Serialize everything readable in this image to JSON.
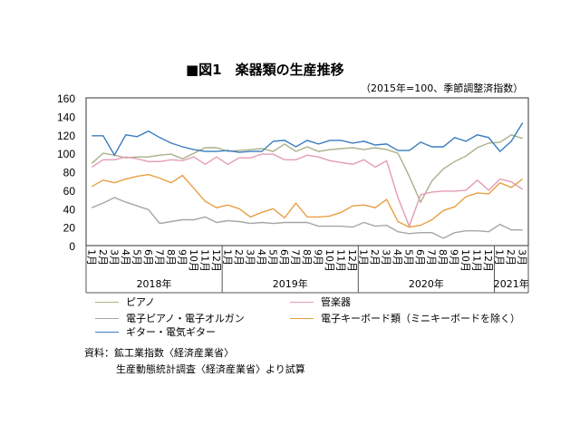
{
  "chart_data": {
    "type": "line",
    "title": "■図1　楽器類の生産推移",
    "subtitle": "（2015年=100、季節調整済指数）",
    "ylim": [
      0,
      160
    ],
    "yticks": [
      0,
      20,
      40,
      60,
      80,
      100,
      120,
      140,
      160
    ],
    "months": [
      "1月",
      "2月",
      "3月",
      "4月",
      "5月",
      "6月",
      "7月",
      "8月",
      "9月",
      "10月",
      "11月",
      "12月",
      "1月",
      "2月",
      "3月",
      "4月",
      "5月",
      "6月",
      "7月",
      "8月",
      "9月",
      "10月",
      "11月",
      "12月",
      "1月",
      "2月",
      "3月",
      "4月",
      "5月",
      "6月",
      "7月",
      "8月",
      "9月",
      "10月",
      "11月",
      "12月",
      "1月",
      "2月",
      "3月"
    ],
    "years": [
      {
        "label": "2018年",
        "count": 12
      },
      {
        "label": "2019年",
        "count": 12
      },
      {
        "label": "2020年",
        "count": 12
      },
      {
        "label": "2021年",
        "count": 3
      }
    ],
    "series": [
      {
        "name": "ピアノ",
        "color": "#a9b18a",
        "values": [
          89,
          100,
          98,
          95,
          96,
          96,
          98,
          99,
          94,
          100,
          106,
          106,
          102,
          103,
          104,
          105,
          102,
          110,
          102,
          107,
          102,
          104,
          105,
          106,
          104,
          106,
          104,
          100,
          75,
          47,
          70,
          83,
          91,
          97,
          106,
          111,
          112,
          120,
          116
        ]
      },
      {
        "name": "管楽器",
        "color": "#e59cb4",
        "values": [
          85,
          93,
          93,
          96,
          94,
          91,
          91,
          93,
          92,
          96,
          88,
          96,
          88,
          95,
          95,
          99,
          99,
          93,
          93,
          98,
          96,
          92,
          90,
          88,
          93,
          85,
          92,
          52,
          21,
          55,
          58,
          59,
          59,
          60,
          71,
          60,
          72,
          69,
          61
        ]
      },
      {
        "name": "電子ピアノ・電子オルガン",
        "color": "#a6a6a6",
        "values": [
          41,
          46,
          52,
          47,
          43,
          39,
          24,
          26,
          28,
          28,
          31,
          25,
          27,
          26,
          24,
          25,
          24,
          25,
          25,
          25,
          21,
          21,
          21,
          20,
          25,
          21,
          22,
          15,
          13,
          14,
          14,
          8,
          14,
          16,
          16,
          15,
          23,
          17,
          17
        ]
      },
      {
        "name": "電子キーボード類（ミニキーボードを除く）",
        "color": "#e8a043",
        "values": [
          64,
          71,
          68,
          72,
          75,
          77,
          73,
          68,
          76,
          62,
          48,
          41,
          44,
          40,
          31,
          36,
          40,
          30,
          46,
          31,
          31,
          32,
          36,
          43,
          44,
          41,
          50,
          26,
          20,
          22,
          28,
          38,
          42,
          53,
          57,
          56,
          68,
          63,
          72
        ]
      },
      {
        "name": "ギター・電気ギター",
        "color": "#3a7dbf",
        "values": [
          119,
          119,
          98,
          120,
          118,
          124,
          117,
          111,
          107,
          104,
          102,
          102,
          103,
          101,
          102,
          102,
          113,
          114,
          107,
          114,
          110,
          114,
          114,
          111,
          113,
          109,
          110,
          103,
          103,
          112,
          107,
          107,
          117,
          113,
          120,
          117,
          102,
          113,
          133
        ]
      }
    ]
  },
  "source": {
    "line1": "資料：鉱工業指数〈経済産業省〉",
    "line2": "生産動態統計調査〈経済産業省〉より試算"
  }
}
